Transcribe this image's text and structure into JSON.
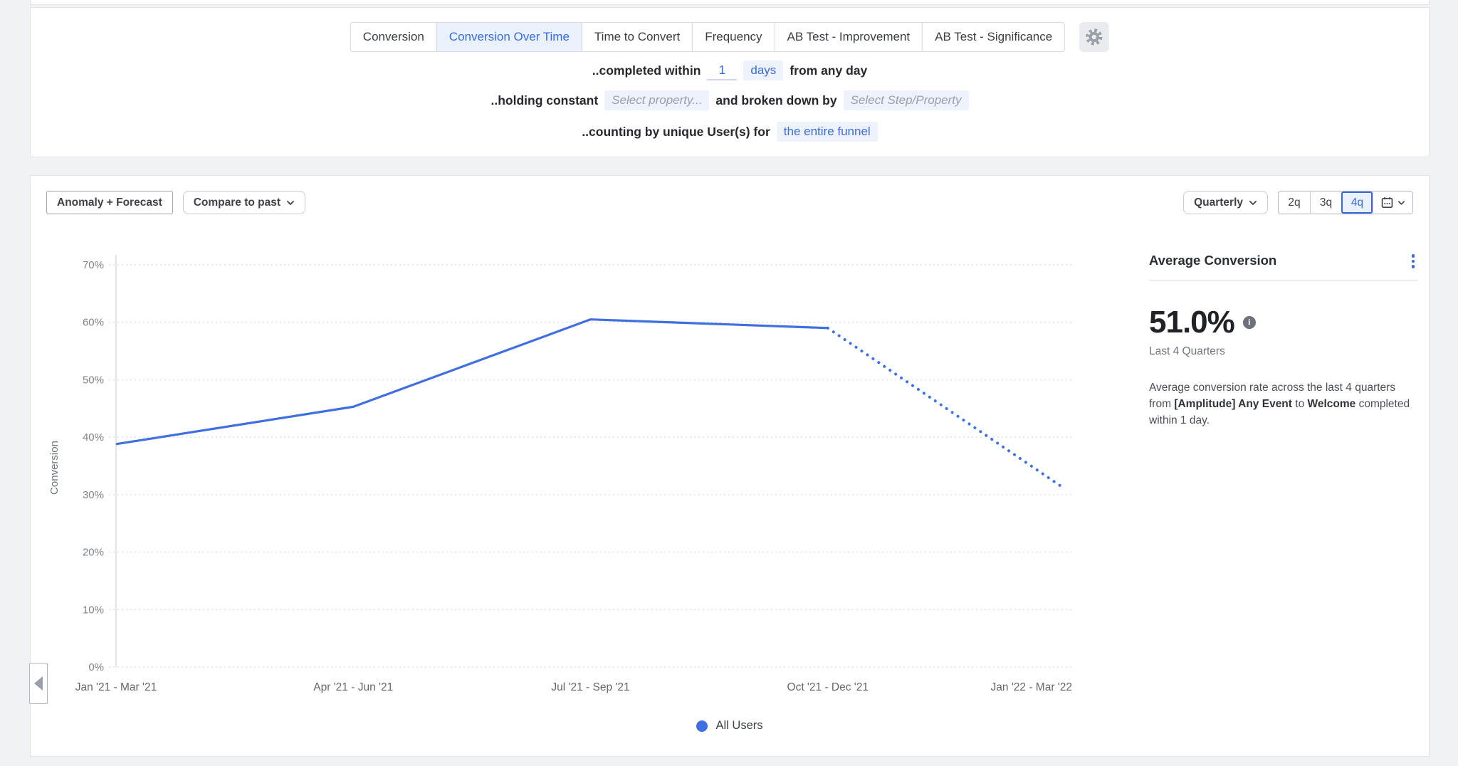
{
  "colors": {
    "accent_blue": "#3a6bd8",
    "line_blue": "#3f6fe0",
    "chip_bg": "#edf2fc",
    "selected_tab_bg": "#e9f1fc",
    "page_bg": "#f1f2f4"
  },
  "tabs": {
    "items": [
      "Conversion",
      "Conversion Over Time",
      "Time to Convert",
      "Frequency",
      "AB Test - Improvement",
      "AB Test - Significance"
    ],
    "selected": "Conversion Over Time"
  },
  "config": {
    "row1_prefix": "..completed within",
    "row1_value": "1",
    "row1_unit": "days",
    "row1_suffix": "from any day",
    "row2_prefix": "..holding constant",
    "row2_placeholder1": "Select property...",
    "row2_middle": "and broken down by",
    "row2_placeholder2": "Select Step/Property",
    "row3_prefix": "..counting by unique User(s) for",
    "row3_chip": "the entire funnel"
  },
  "toolbar": {
    "anomaly_forecast": "Anomaly + Forecast",
    "compare_to_past": "Compare to past",
    "granularity": "Quarterly",
    "range_options": [
      "2q",
      "3q",
      "4q"
    ],
    "range_selected": "4q"
  },
  "panel": {
    "title": "Average Conversion",
    "value": "51.0%",
    "period": "Last 4 Quarters",
    "desc_part1": "Average conversion rate across the last 4 quarters from ",
    "desc_event1": "[Amplitude] Any Event",
    "desc_part2": " to ",
    "desc_event2": "Welcome",
    "desc_part3": " completed within 1 day."
  },
  "chart_data": {
    "type": "line",
    "title": "",
    "xlabel": "",
    "ylabel": "Conversion",
    "categories": [
      "Jan '21 - Mar '21",
      "Apr '21 - Jun '21",
      "Jul '21 - Sep '21",
      "Oct '21 - Dec '21",
      "Jan '22 - Mar '22"
    ],
    "series": [
      {
        "name": "All Users",
        "color": "#3f6fe0",
        "values": [
          38.8,
          45.3,
          60.5,
          59.0,
          31.0
        ],
        "forecast_from_index": 3,
        "forecast_style": "dotted"
      }
    ],
    "ylim": [
      0,
      70
    ],
    "ytick_step": 10,
    "ytick_format": "percent",
    "grid": "horizontal-dotted",
    "legend_position": "bottom"
  }
}
